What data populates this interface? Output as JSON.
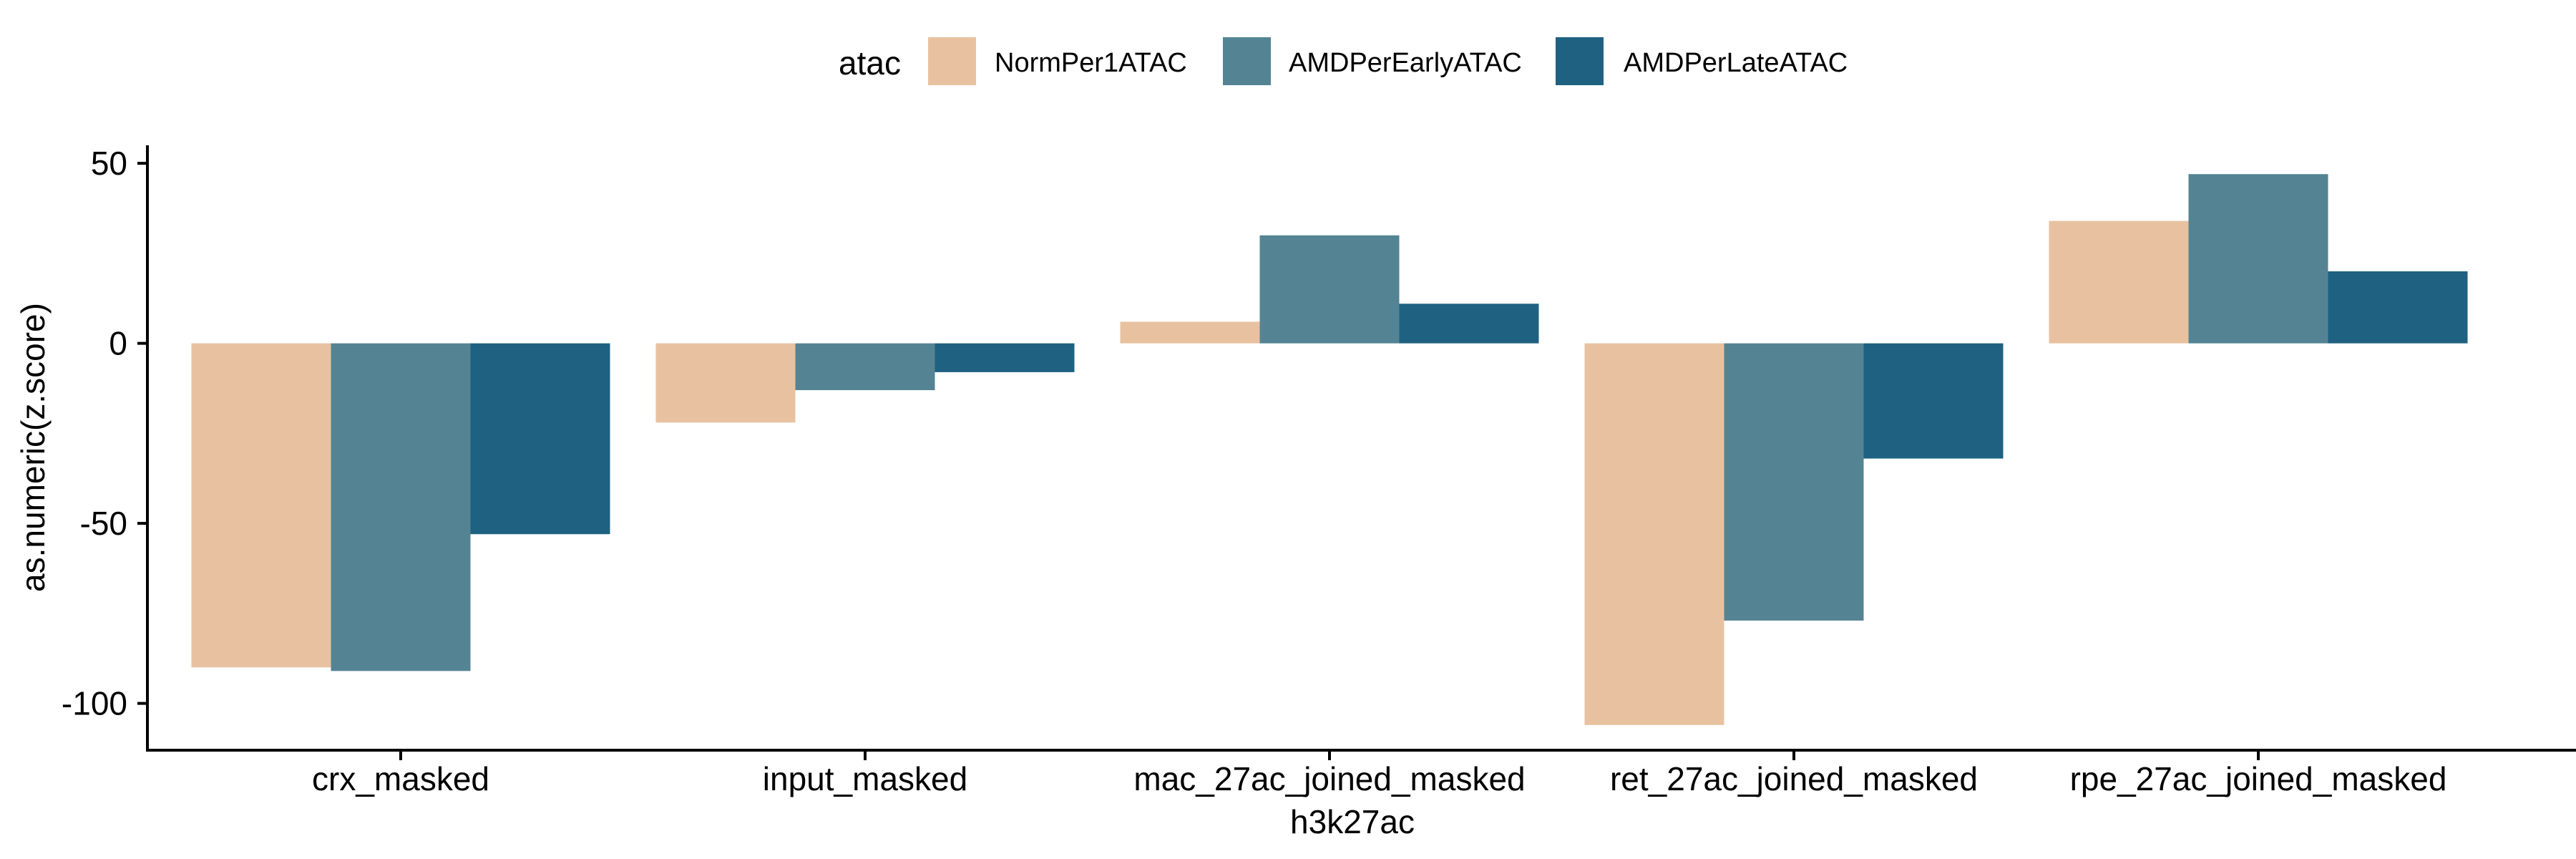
{
  "chart_data": {
    "type": "bar",
    "xlabel": "h3k27ac",
    "ylabel": "as.numeric(z.score)",
    "categories": [
      "crx_masked",
      "input_masked",
      "mac_27ac_joined_masked",
      "ret_27ac_joined_masked",
      "rpe_27ac_joined_masked"
    ],
    "legend": {
      "title": "atac",
      "position": "top"
    },
    "series": [
      {
        "name": "NormPer1ATAC",
        "color": "#E8C2A0",
        "values": [
          -90,
          -22,
          6,
          -106,
          34
        ]
      },
      {
        "name": "AMDPerEarlyATAC",
        "color": "#548493",
        "values": [
          -91,
          -13,
          30,
          -77,
          47
        ]
      },
      {
        "name": "AMDPerLateATAC",
        "color": "#1F6180",
        "values": [
          -53,
          -8,
          11,
          -32,
          20
        ]
      }
    ],
    "ylim": [
      -113,
      55
    ],
    "yticks": [
      50,
      0,
      -50,
      -100
    ],
    "ytick_labels": [
      "50",
      "0",
      "-50",
      "-100"
    ],
    "grid": false
  }
}
